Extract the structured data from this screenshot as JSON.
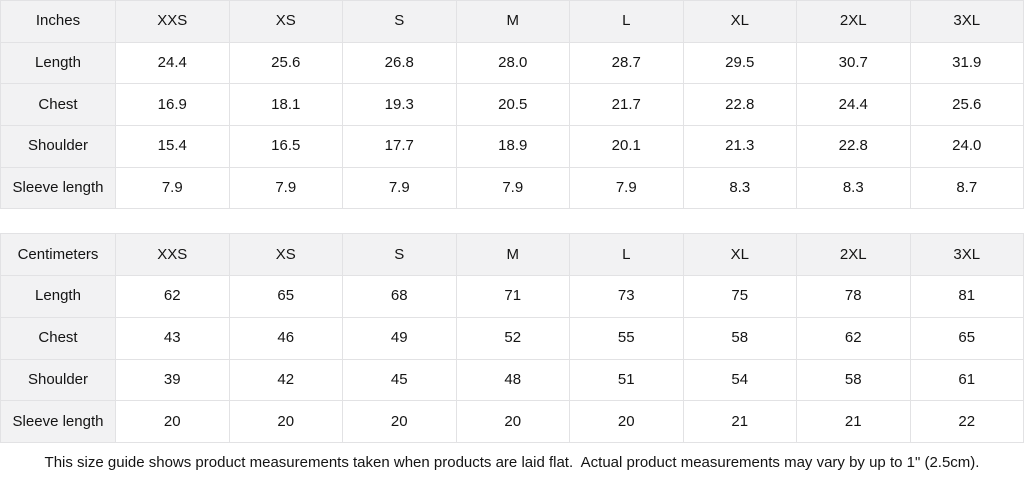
{
  "chart_data": [
    {
      "type": "table",
      "title": "Inches",
      "columns": [
        "XXS",
        "XS",
        "S",
        "M",
        "L",
        "XL",
        "2XL",
        "3XL"
      ],
      "rows": [
        {
          "label": "Length",
          "values": [
            "24.4",
            "25.6",
            "26.8",
            "28.0",
            "28.7",
            "29.5",
            "30.7",
            "31.9"
          ]
        },
        {
          "label": "Chest",
          "values": [
            "16.9",
            "18.1",
            "19.3",
            "20.5",
            "21.7",
            "22.8",
            "24.4",
            "25.6"
          ]
        },
        {
          "label": "Shoulder",
          "values": [
            "15.4",
            "16.5",
            "17.7",
            "18.9",
            "20.1",
            "21.3",
            "22.8",
            "24.0"
          ]
        },
        {
          "label": "Sleeve length",
          "values": [
            "7.9",
            "7.9",
            "7.9",
            "7.9",
            "7.9",
            "8.3",
            "8.3",
            "8.7"
          ]
        }
      ]
    },
    {
      "type": "table",
      "title": "Centimeters",
      "columns": [
        "XXS",
        "XS",
        "S",
        "M",
        "L",
        "XL",
        "2XL",
        "3XL"
      ],
      "rows": [
        {
          "label": "Length",
          "values": [
            "62",
            "65",
            "68",
            "71",
            "73",
            "75",
            "78",
            "81"
          ]
        },
        {
          "label": "Chest",
          "values": [
            "43",
            "46",
            "49",
            "52",
            "55",
            "58",
            "62",
            "65"
          ]
        },
        {
          "label": "Shoulder",
          "values": [
            "39",
            "42",
            "45",
            "48",
            "51",
            "54",
            "58",
            "61"
          ]
        },
        {
          "label": "Sleeve length",
          "values": [
            "20",
            "20",
            "20",
            "20",
            "20",
            "21",
            "21",
            "22"
          ]
        }
      ]
    }
  ],
  "footer": {
    "note": "This size guide shows product measurements taken when products are laid flat.  Actual product measurements may vary by up to 1\" (2.5cm)."
  },
  "colors": {
    "header_bg": "#f2f2f3",
    "border": "#e2e2e4",
    "text": "#141414",
    "page_bg": "#ffffff"
  }
}
